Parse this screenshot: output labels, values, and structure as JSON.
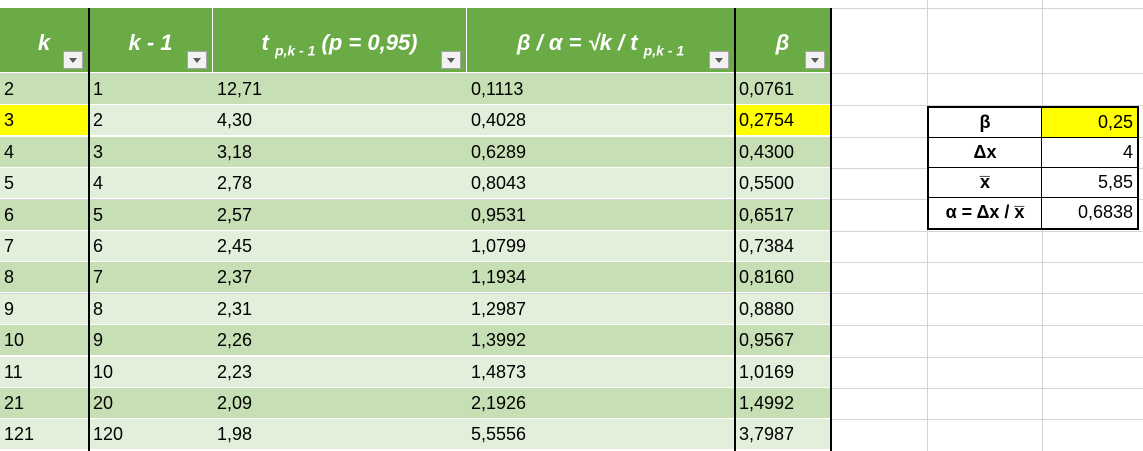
{
  "colors": {
    "header_bg": "#6aab46",
    "band_dark": "#c6dfb4",
    "band_light": "#e2efda",
    "highlight": "#ffff00"
  },
  "columns": [
    {
      "label": "k",
      "sub": ""
    },
    {
      "label": "k - 1",
      "sub": ""
    },
    {
      "label": "t ",
      "sub": "p,k - 1",
      "suffix": " (p = 0,95)"
    },
    {
      "label": "β / α = √k / t ",
      "sub": "p,k - 1",
      "suffix": ""
    },
    {
      "label": "β",
      "sub": ""
    }
  ],
  "filter_icon": "dropdown-arrow-icon",
  "rows": [
    [
      "2",
      "1",
      "12,71",
      "0,1113",
      "0,0761"
    ],
    [
      "3",
      "2",
      "4,30",
      "0,4028",
      "0,2754"
    ],
    [
      "4",
      "3",
      "3,18",
      "0,6289",
      "0,4300"
    ],
    [
      "5",
      "4",
      "2,78",
      "0,8043",
      "0,5500"
    ],
    [
      "6",
      "5",
      "2,57",
      "0,9531",
      "0,6517"
    ],
    [
      "7",
      "6",
      "2,45",
      "1,0799",
      "0,7384"
    ],
    [
      "8",
      "7",
      "2,37",
      "1,1934",
      "0,8160"
    ],
    [
      "9",
      "8",
      "2,31",
      "1,2987",
      "0,8880"
    ],
    [
      "10",
      "9",
      "2,26",
      "1,3992",
      "0,9567"
    ],
    [
      "11",
      "10",
      "2,23",
      "1,4873",
      "1,0169"
    ],
    [
      "21",
      "20",
      "2,09",
      "2,1926",
      "1,4992"
    ],
    [
      "121",
      "120",
      "1,98",
      "5,5556",
      "3,7987"
    ]
  ],
  "highlighted_row_index": 1,
  "side_table": [
    {
      "label": "β",
      "value": "0,25",
      "highlight": true
    },
    {
      "label": "Δx",
      "value": "4",
      "highlight": false
    },
    {
      "label": "x̅",
      "value": "5,85",
      "highlight": false
    },
    {
      "label": "α = Δx / x̅",
      "value": "0,6838",
      "highlight": false
    }
  ]
}
